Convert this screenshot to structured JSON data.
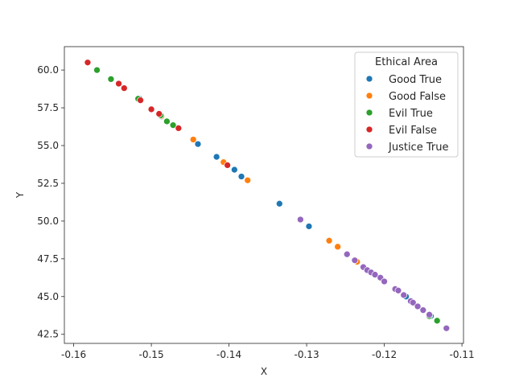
{
  "chart_data": {
    "type": "scatter",
    "xlabel": "X",
    "ylabel": "Y",
    "xlim": [
      -0.1612,
      -0.1098
    ],
    "ylim": [
      41.9,
      61.55
    ],
    "xticks": [
      "-0.16",
      "-0.15",
      "-0.14",
      "-0.13",
      "-0.12",
      "-0.11"
    ],
    "xtick_values": [
      -0.16,
      -0.15,
      -0.14,
      -0.13,
      -0.12,
      -0.11
    ],
    "yticks": [
      "42.5",
      "45.0",
      "47.5",
      "50.0",
      "52.5",
      "55.0",
      "57.5",
      "60.0"
    ],
    "ytick_values": [
      42.5,
      45.0,
      47.5,
      50.0,
      52.5,
      55.0,
      57.5,
      60.0
    ],
    "grid": false,
    "legend": {
      "title": "Ethical Area",
      "placement": "top-right"
    },
    "series": [
      {
        "name": "Good True",
        "color": "#1f77b4",
        "points": [
          [
            -0.1515,
            58.1
          ],
          [
            -0.1487,
            56.9
          ],
          [
            -0.144,
            55.1
          ],
          [
            -0.1416,
            54.25
          ],
          [
            -0.1393,
            53.4
          ],
          [
            -0.1384,
            52.95
          ],
          [
            -0.1335,
            51.15
          ],
          [
            -0.1297,
            49.65
          ],
          [
            -0.1172,
            45.0
          ],
          [
            -0.114,
            43.7
          ]
        ]
      },
      {
        "name": "Good False",
        "color": "#ff7f0e",
        "points": [
          [
            -0.1487,
            56.95
          ],
          [
            -0.1446,
            55.4
          ],
          [
            -0.1407,
            53.9
          ],
          [
            -0.1376,
            52.7
          ],
          [
            -0.1271,
            48.7
          ],
          [
            -0.126,
            48.3
          ],
          [
            -0.1235,
            47.3
          ]
        ]
      },
      {
        "name": "Evil True",
        "color": "#2ca02c",
        "points": [
          [
            -0.157,
            60.0
          ],
          [
            -0.1552,
            59.4
          ],
          [
            -0.1517,
            58.1
          ],
          [
            -0.1488,
            57.0
          ],
          [
            -0.148,
            56.6
          ],
          [
            -0.1472,
            56.35
          ],
          [
            -0.1142,
            43.7
          ],
          [
            -0.1132,
            43.4
          ]
        ]
      },
      {
        "name": "Evil False",
        "color": "#d62728",
        "points": [
          [
            -0.1582,
            60.5
          ],
          [
            -0.1542,
            59.1
          ],
          [
            -0.1535,
            58.8
          ],
          [
            -0.1514,
            58.0
          ],
          [
            -0.15,
            57.4
          ],
          [
            -0.149,
            57.1
          ],
          [
            -0.1465,
            56.15
          ],
          [
            -0.1402,
            53.7
          ]
        ]
      },
      {
        "name": "Justice True",
        "color": "#9467bd",
        "points": [
          [
            -0.1308,
            50.1
          ],
          [
            -0.1248,
            47.8
          ],
          [
            -0.1238,
            47.4
          ],
          [
            -0.1227,
            46.95
          ],
          [
            -0.1222,
            46.75
          ],
          [
            -0.1217,
            46.6
          ],
          [
            -0.1212,
            46.45
          ],
          [
            -0.1205,
            46.25
          ],
          [
            -0.12,
            46.0
          ],
          [
            -0.1186,
            45.5
          ],
          [
            -0.1182,
            45.4
          ],
          [
            -0.1175,
            45.1
          ],
          [
            -0.1166,
            44.7
          ],
          [
            -0.1163,
            44.6
          ],
          [
            -0.1157,
            44.35
          ],
          [
            -0.115,
            44.1
          ],
          [
            -0.1142,
            43.8
          ],
          [
            -0.112,
            42.9
          ]
        ]
      }
    ]
  }
}
